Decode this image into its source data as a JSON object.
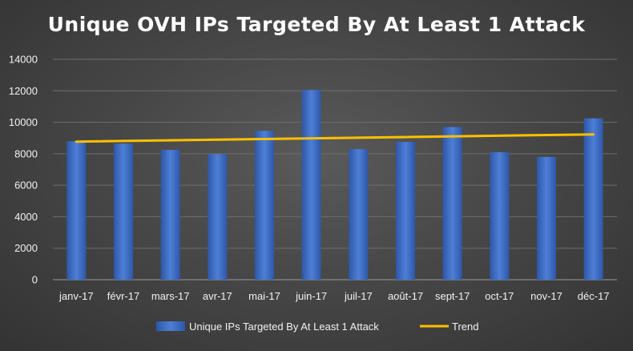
{
  "chart_data": {
    "type": "bar",
    "title": "Unique OVH IPs Targeted By At Least 1 Attack",
    "categories": [
      "janv-17",
      "févr-17",
      "mars-17",
      "avr-17",
      "mai-17",
      "juin-17",
      "juil-17",
      "août-17",
      "sept-17",
      "oct-17",
      "nov-17",
      "déc-17"
    ],
    "series": [
      {
        "name": "Unique IPs Targeted By At Least 1 Attack",
        "type": "bar",
        "color": "#4472c4",
        "values": [
          8800,
          8650,
          8250,
          7980,
          9450,
          12050,
          8300,
          8750,
          9700,
          8100,
          7800,
          10250
        ]
      },
      {
        "name": "Trend",
        "type": "line",
        "color": "#ffc000",
        "start": 8770,
        "end": 9230
      }
    ],
    "ylim": [
      0,
      14000
    ],
    "yticks": [
      "0",
      "2000",
      "4000",
      "6000",
      "8000",
      "10000",
      "12000",
      "14000"
    ],
    "grid": true,
    "legend_position": "bottom"
  }
}
